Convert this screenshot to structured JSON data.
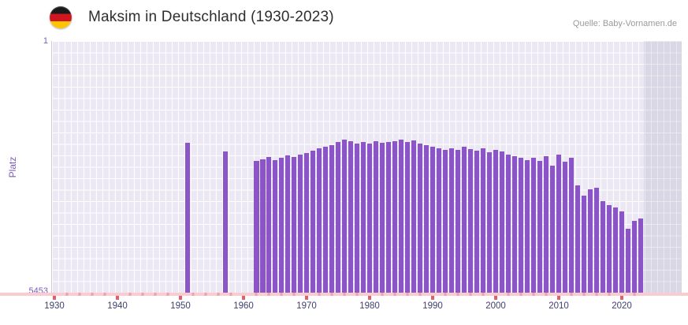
{
  "header": {
    "title": "Maksim in Deutschland (1930-2023)",
    "source": "Quelle: Baby-Vornamen.de"
  },
  "y_axis": {
    "label": "Platz",
    "top_tick": "1",
    "bottom_tick": "5453"
  },
  "x_axis": {
    "ticks": [
      "1930",
      "1940",
      "1950",
      "1960",
      "1970",
      "1980",
      "1990",
      "2000",
      "2010",
      "2020"
    ]
  },
  "colors": {
    "bar": "#8b55c8",
    "plot_background": "#ebe8f4",
    "grid": "#ffffff",
    "axis_line_pink": "#f8ccd1",
    "tick_red": "#e2606c",
    "tick_minor_pink": "#f0a0ac",
    "axis_label_purple": "#7b5cb8",
    "x_label_navy": "#3f3f6e",
    "source_grey": "#9a9a9a"
  },
  "chart_data": {
    "type": "bar",
    "title": "Maksim in Deutschland (1930-2023)",
    "xlabel": "",
    "ylabel": "Platz",
    "ylim": [
      1,
      5453
    ],
    "y_inverted": true,
    "grid": true,
    "x_range_rendered": [
      1930,
      2029
    ],
    "years": [
      1930,
      1931,
      1932,
      1933,
      1934,
      1935,
      1936,
      1937,
      1938,
      1939,
      1940,
      1941,
      1942,
      1943,
      1944,
      1945,
      1946,
      1947,
      1948,
      1949,
      1950,
      1951,
      1952,
      1953,
      1954,
      1955,
      1956,
      1957,
      1958,
      1959,
      1960,
      1961,
      1962,
      1963,
      1964,
      1965,
      1966,
      1967,
      1968,
      1969,
      1970,
      1971,
      1972,
      1973,
      1974,
      1975,
      1976,
      1977,
      1978,
      1979,
      1980,
      1981,
      1982,
      1983,
      1984,
      1985,
      1986,
      1987,
      1988,
      1989,
      1990,
      1991,
      1992,
      1993,
      1994,
      1995,
      1996,
      1997,
      1998,
      1999,
      2000,
      2001,
      2002,
      2003,
      2004,
      2005,
      2006,
      2007,
      2008,
      2009,
      2010,
      2011,
      2012,
      2013,
      2014,
      2015,
      2016,
      2017,
      2018,
      2019,
      2020,
      2021,
      2022,
      2023
    ],
    "values": [
      null,
      null,
      null,
      null,
      null,
      null,
      null,
      null,
      null,
      null,
      null,
      null,
      null,
      null,
      null,
      null,
      null,
      null,
      null,
      null,
      null,
      2206,
      null,
      null,
      null,
      null,
      null,
      2393,
      null,
      null,
      null,
      null,
      2598,
      2564,
      2512,
      2581,
      2529,
      2478,
      2512,
      2461,
      2427,
      2376,
      2324,
      2290,
      2256,
      2188,
      2136,
      2171,
      2222,
      2188,
      2222,
      2171,
      2205,
      2188,
      2171,
      2136,
      2188,
      2153,
      2222,
      2256,
      2290,
      2324,
      2359,
      2324,
      2359,
      2290,
      2341,
      2376,
      2324,
      2410,
      2359,
      2393,
      2461,
      2495,
      2529,
      2581,
      2529,
      2598,
      2495,
      2700,
      2461,
      2615,
      2529,
      3128,
      3350,
      3213,
      3179,
      3470,
      3556,
      3607,
      3692,
      4068,
      3897,
      3846
    ]
  }
}
